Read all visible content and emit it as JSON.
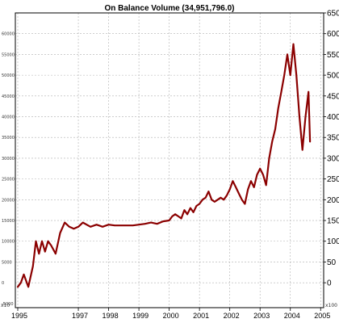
{
  "chart_data": {
    "type": "line",
    "title": "On Balance Volume (34,951,796.0)",
    "xlabel": "",
    "ylabel": "",
    "x_ticks": [
      "1995",
      "1997",
      "1998",
      "1999",
      "2000",
      "2001",
      "2002",
      "2003",
      "2004",
      "2005"
    ],
    "y_ticks_right": [
      "650",
      "600",
      "550",
      "500",
      "450",
      "400",
      "350",
      "300",
      "250",
      "200",
      "150",
      "100",
      "50",
      "0"
    ],
    "y_ticks_left": [
      "60000",
      "55000",
      "50000",
      "45000",
      "40000",
      "35000",
      "30000",
      "25000",
      "20000",
      "15000",
      "10000",
      "5000",
      "0",
      "-5000"
    ],
    "left_unit_label": "x10",
    "right_unit_label": "x100",
    "ylim": [
      -60,
      650
    ],
    "grid": true,
    "series": [
      {
        "color": "#8b0000",
        "x": [
          1995.0,
          1995.1,
          1995.2,
          1995.35,
          1995.5,
          1995.6,
          1995.7,
          1995.8,
          1995.9,
          1996.0,
          1996.1,
          1996.25,
          1996.4,
          1996.55,
          1996.7,
          1996.85,
          1997.0,
          1997.15,
          1997.4,
          1997.6,
          1997.8,
          1998.0,
          1998.2,
          1998.5,
          1998.8,
          1999.0,
          1999.2,
          1999.4,
          1999.6,
          1999.8,
          2000.0,
          2000.1,
          2000.2,
          2000.3,
          2000.4,
          2000.5,
          2000.6,
          2000.7,
          2000.8,
          2000.9,
          2001.0,
          2001.1,
          2001.2,
          2001.3,
          2001.4,
          2001.5,
          2001.6,
          2001.7,
          2001.8,
          2001.9,
          2002.0,
          2002.1,
          2002.2,
          2002.3,
          2002.4,
          2002.5,
          2002.6,
          2002.7,
          2002.8,
          2002.9,
          2003.0,
          2003.1,
          2003.2,
          2003.3,
          2003.4,
          2003.5,
          2003.6,
          2003.7,
          2003.8,
          2003.9,
          2004.0,
          2004.1,
          2004.2,
          2004.3,
          2004.4,
          2004.5,
          2004.6,
          2004.65
        ],
        "values": [
          -10,
          0,
          20,
          -10,
          40,
          100,
          70,
          100,
          75,
          100,
          90,
          70,
          120,
          145,
          135,
          130,
          135,
          145,
          135,
          140,
          135,
          140,
          138,
          138,
          138,
          140,
          142,
          145,
          142,
          148,
          150,
          160,
          165,
          160,
          155,
          175,
          165,
          180,
          170,
          185,
          190,
          200,
          205,
          220,
          200,
          195,
          200,
          205,
          200,
          210,
          225,
          245,
          230,
          215,
          200,
          190,
          225,
          245,
          230,
          260,
          275,
          260,
          235,
          300,
          340,
          370,
          420,
          460,
          500,
          550,
          500,
          575,
          500,
          400,
          320,
          400,
          460,
          340
        ]
      }
    ]
  }
}
